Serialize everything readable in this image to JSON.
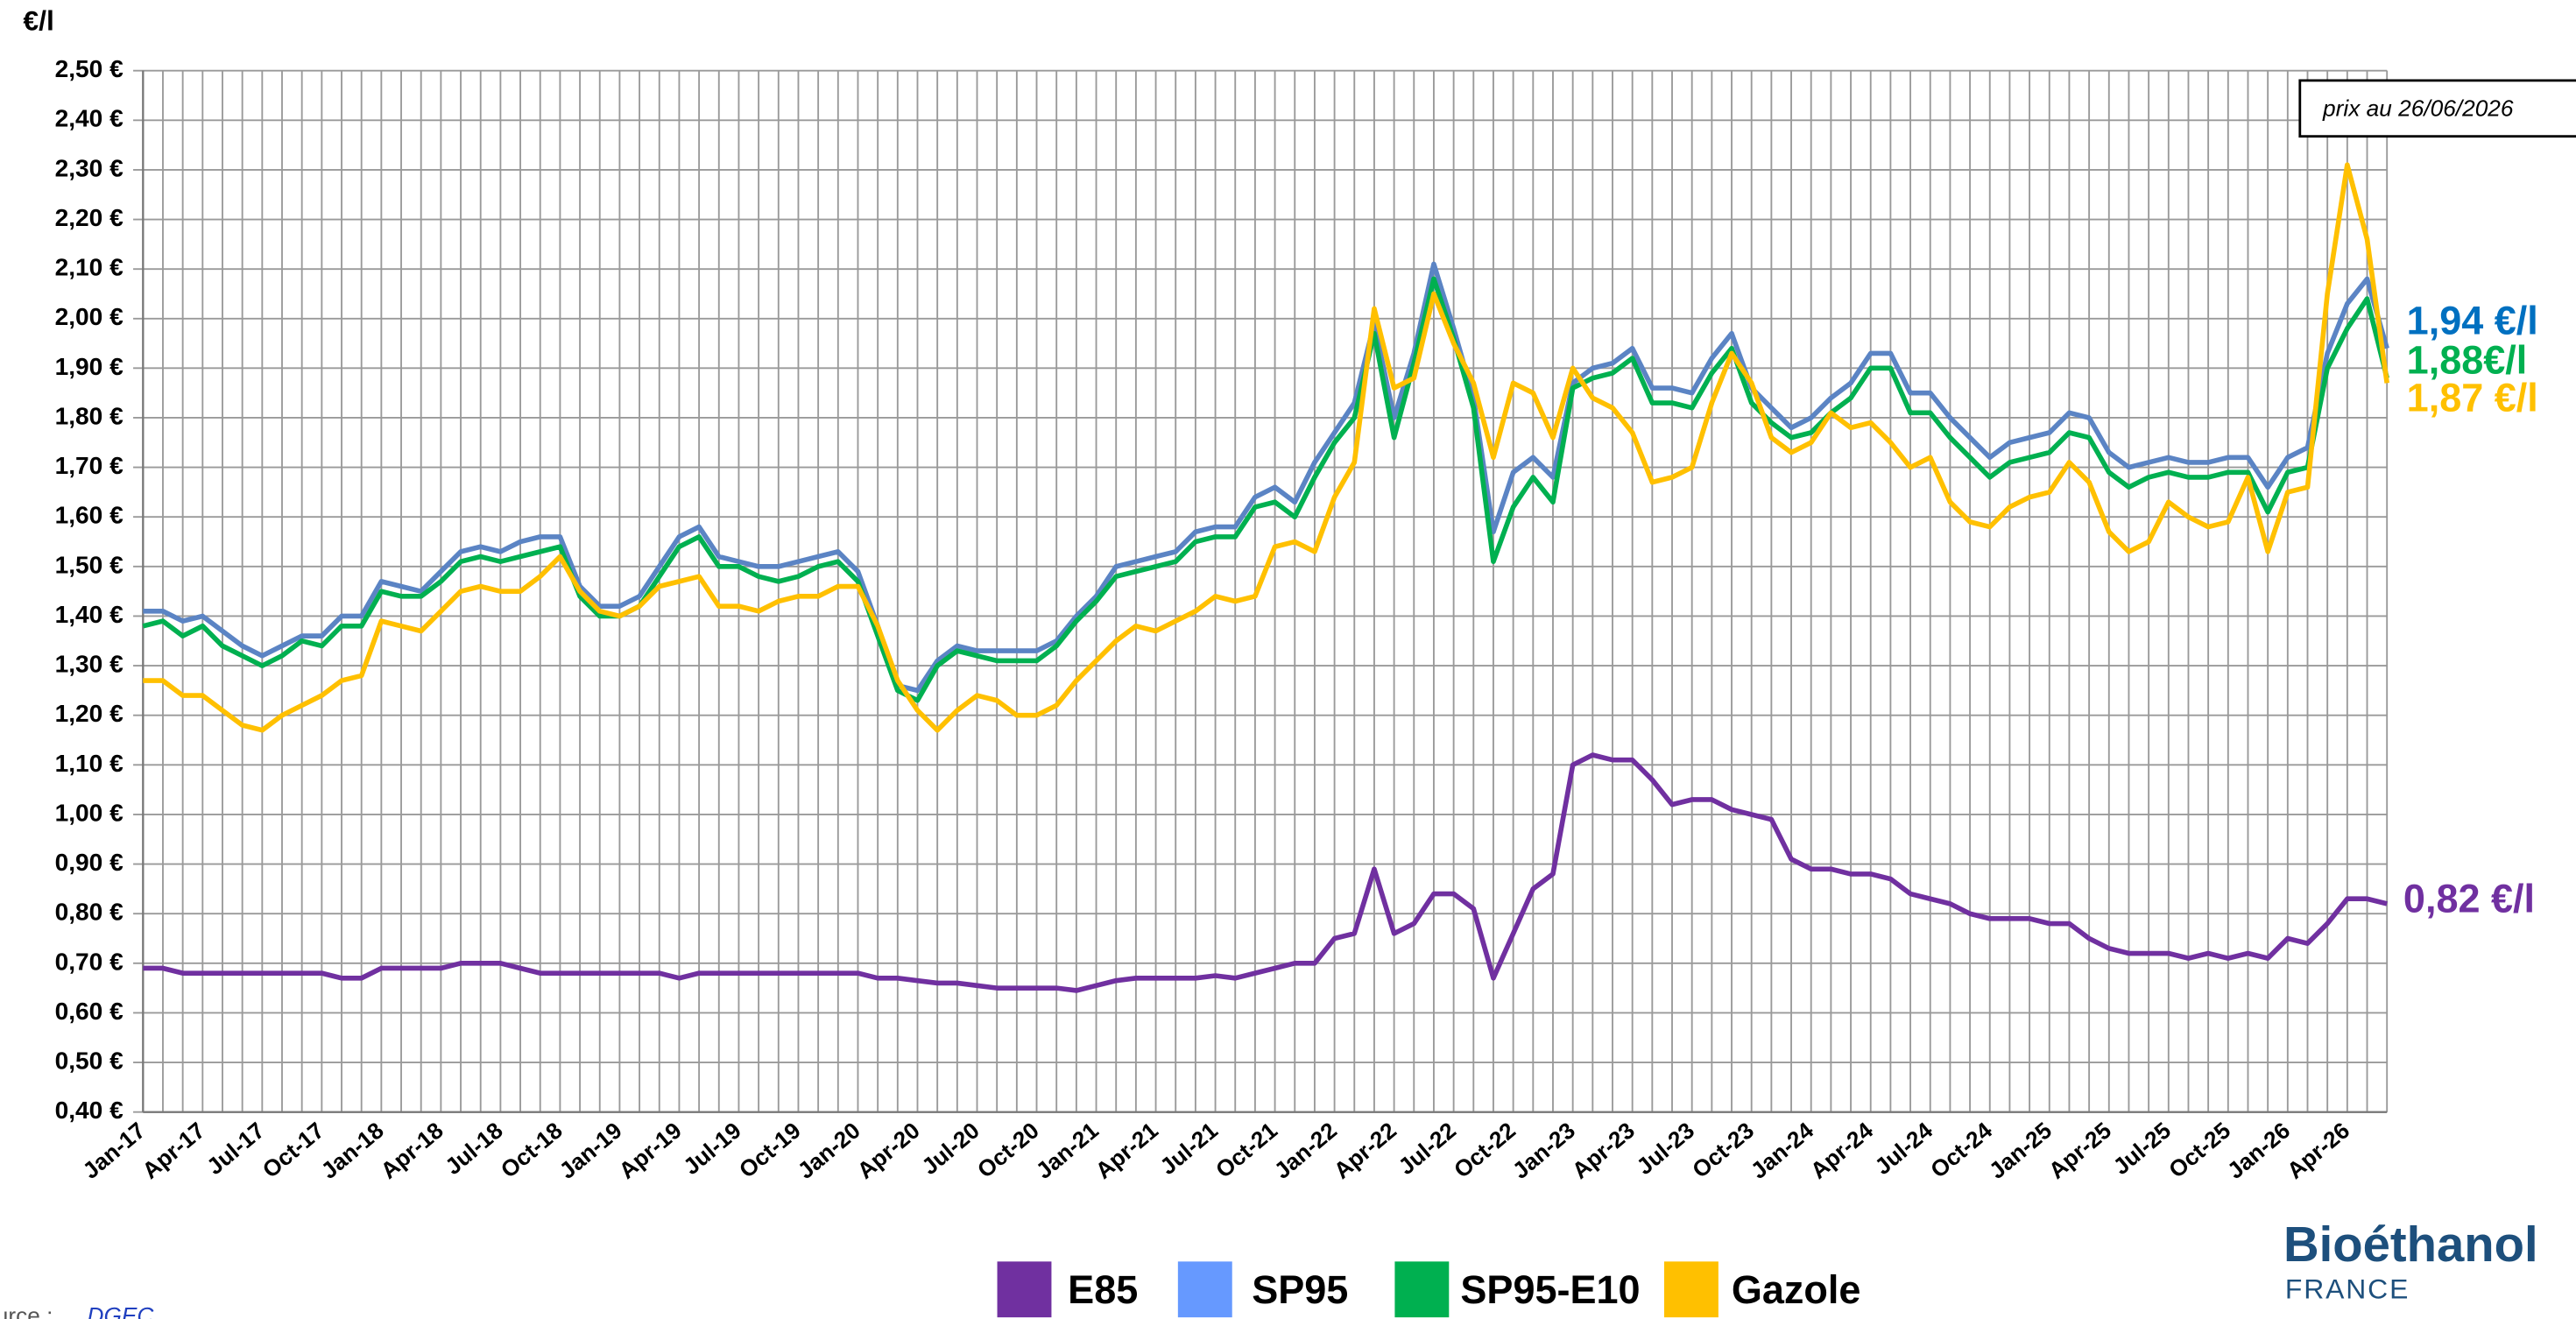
{
  "chart_data": {
    "type": "line",
    "y_label": "€/l",
    "categories": [
      "Jan-17",
      null,
      null,
      "Apr-17",
      null,
      null,
      "Jul-17",
      null,
      null,
      "Oct-17",
      null,
      null,
      "Jan-18",
      null,
      null,
      "Apr-18",
      null,
      null,
      "Jul-18",
      null,
      null,
      "Oct-18",
      null,
      null,
      "Jan-19",
      null,
      null,
      "Apr-19",
      null,
      null,
      "Jul-19",
      null,
      null,
      "Oct-19",
      null,
      null,
      "Jan-20",
      null,
      null,
      "Apr-20",
      null,
      null,
      "Jul-20",
      null,
      null,
      "Oct-20",
      null,
      null,
      "Jan-21",
      null,
      null,
      "Apr-21",
      null,
      null,
      "Jul-21",
      null,
      null,
      "Oct-21",
      null,
      null,
      "Jan-22",
      null,
      null,
      "Apr-22",
      null,
      null,
      "Jul-22",
      null,
      null,
      "Oct-22",
      null,
      null,
      "Jan-23",
      null,
      null,
      "Apr-23",
      null,
      null,
      "Jul-23",
      null,
      null,
      "Oct-23",
      null,
      null,
      "Jan-24",
      null,
      null,
      "Apr-24",
      null,
      null,
      "Jul-24",
      null,
      null,
      "Oct-24",
      null,
      null,
      "Jan-25",
      null,
      null,
      "Apr-25",
      null,
      null,
      "Jul-25",
      null,
      null,
      "Oct-25",
      null,
      null,
      "Jan-26",
      null,
      null,
      "Apr-26",
      null,
      null
    ],
    "series": [
      {
        "name": "E85",
        "color": "#7030a0",
        "legend_color": "#7030a0",
        "values": [
          0.69,
          0.69,
          0.68,
          0.68,
          0.68,
          0.68,
          0.68,
          0.68,
          0.68,
          0.68,
          0.67,
          0.67,
          0.69,
          0.69,
          0.69,
          0.69,
          0.7,
          0.7,
          0.7,
          0.69,
          0.68,
          0.68,
          0.68,
          0.68,
          0.68,
          0.68,
          0.68,
          0.67,
          0.68,
          0.68,
          0.68,
          0.68,
          0.68,
          0.68,
          0.68,
          0.68,
          0.68,
          0.67,
          0.67,
          0.665,
          0.66,
          0.66,
          0.655,
          0.65,
          0.65,
          0.65,
          0.65,
          0.645,
          0.655,
          0.665,
          0.67,
          0.67,
          0.67,
          0.67,
          0.675,
          0.67,
          0.68,
          0.69,
          0.7,
          0.7,
          0.75,
          0.76,
          0.89,
          0.76,
          0.78,
          0.84,
          0.84,
          0.81,
          0.67,
          0.76,
          0.85,
          0.88,
          1.1,
          1.12,
          1.11,
          1.11,
          1.07,
          1.02,
          1.03,
          1.03,
          1.01,
          1.0,
          0.99,
          0.91,
          0.89,
          0.89,
          0.88,
          0.88,
          0.87,
          0.84,
          0.83,
          0.82,
          0.8,
          0.79,
          0.79,
          0.79,
          0.78,
          0.78,
          0.75,
          0.73,
          0.72,
          0.72,
          0.72,
          0.71,
          0.72,
          0.71,
          0.72,
          0.71,
          0.75,
          0.74,
          0.78,
          0.83,
          0.83,
          0.82
        ]
      },
      {
        "name": "SP95",
        "color": "#5b84c4",
        "legend_color": "#6699ff",
        "values": [
          1.41,
          1.41,
          1.39,
          1.4,
          1.37,
          1.34,
          1.32,
          1.34,
          1.36,
          1.36,
          1.4,
          1.4,
          1.47,
          1.46,
          1.45,
          1.49,
          1.53,
          1.54,
          1.53,
          1.55,
          1.56,
          1.56,
          1.46,
          1.42,
          1.42,
          1.44,
          1.5,
          1.56,
          1.58,
          1.52,
          1.51,
          1.5,
          1.5,
          1.51,
          1.52,
          1.53,
          1.49,
          1.38,
          1.26,
          1.25,
          1.31,
          1.34,
          1.33,
          1.33,
          1.33,
          1.33,
          1.35,
          1.4,
          1.44,
          1.5,
          1.51,
          1.52,
          1.53,
          1.57,
          1.58,
          1.58,
          1.64,
          1.66,
          1.63,
          1.71,
          1.77,
          1.83,
          1.99,
          1.8,
          1.93,
          2.11,
          1.98,
          1.84,
          1.57,
          1.69,
          1.72,
          1.68,
          1.87,
          1.9,
          1.91,
          1.94,
          1.86,
          1.86,
          1.85,
          1.92,
          1.97,
          1.86,
          1.82,
          1.78,
          1.8,
          1.84,
          1.87,
          1.93,
          1.93,
          1.85,
          1.85,
          1.8,
          1.76,
          1.72,
          1.75,
          1.76,
          1.77,
          1.81,
          1.8,
          1.73,
          1.7,
          1.71,
          1.72,
          1.71,
          1.71,
          1.72,
          1.72,
          1.66,
          1.72,
          1.74,
          1.93,
          2.03,
          2.08,
          1.94
        ]
      },
      {
        "name": "SP95-E10",
        "color": "#00b050",
        "legend_color": "#00b050",
        "values": [
          1.38,
          1.39,
          1.36,
          1.38,
          1.34,
          1.32,
          1.3,
          1.32,
          1.35,
          1.34,
          1.38,
          1.38,
          1.45,
          1.44,
          1.44,
          1.47,
          1.51,
          1.52,
          1.51,
          1.52,
          1.53,
          1.54,
          1.44,
          1.4,
          1.4,
          1.42,
          1.48,
          1.54,
          1.56,
          1.5,
          1.5,
          1.48,
          1.47,
          1.48,
          1.5,
          1.51,
          1.47,
          1.36,
          1.25,
          1.23,
          1.3,
          1.33,
          1.32,
          1.31,
          1.31,
          1.31,
          1.34,
          1.39,
          1.43,
          1.48,
          1.49,
          1.5,
          1.51,
          1.55,
          1.56,
          1.56,
          1.62,
          1.63,
          1.6,
          1.68,
          1.75,
          1.8,
          1.97,
          1.76,
          1.91,
          2.08,
          1.96,
          1.82,
          1.51,
          1.62,
          1.68,
          1.63,
          1.86,
          1.88,
          1.89,
          1.92,
          1.83,
          1.83,
          1.82,
          1.89,
          1.94,
          1.83,
          1.79,
          1.76,
          1.77,
          1.81,
          1.84,
          1.9,
          1.9,
          1.81,
          1.81,
          1.76,
          1.72,
          1.68,
          1.71,
          1.72,
          1.73,
          1.77,
          1.76,
          1.69,
          1.66,
          1.68,
          1.69,
          1.68,
          1.68,
          1.69,
          1.69,
          1.61,
          1.69,
          1.7,
          1.9,
          1.98,
          2.04,
          1.88
        ]
      },
      {
        "name": "Gazole",
        "color": "#ffc000",
        "legend_color": "#ffc000",
        "values": [
          1.27,
          1.27,
          1.24,
          1.24,
          1.21,
          1.18,
          1.17,
          1.2,
          1.22,
          1.24,
          1.27,
          1.28,
          1.39,
          1.38,
          1.37,
          1.41,
          1.45,
          1.46,
          1.45,
          1.45,
          1.48,
          1.52,
          1.45,
          1.41,
          1.4,
          1.42,
          1.46,
          1.47,
          1.48,
          1.42,
          1.42,
          1.41,
          1.43,
          1.44,
          1.44,
          1.46,
          1.46,
          1.38,
          1.27,
          1.21,
          1.17,
          1.21,
          1.24,
          1.23,
          1.2,
          1.2,
          1.22,
          1.27,
          1.31,
          1.35,
          1.38,
          1.37,
          1.39,
          1.41,
          1.44,
          1.43,
          1.44,
          1.54,
          1.55,
          1.53,
          1.64,
          1.71,
          2.02,
          1.86,
          1.88,
          2.05,
          1.95,
          1.87,
          1.72,
          1.87,
          1.85,
          1.76,
          1.9,
          1.84,
          1.82,
          1.77,
          1.67,
          1.68,
          1.7,
          1.83,
          1.93,
          1.87,
          1.76,
          1.73,
          1.75,
          1.81,
          1.78,
          1.79,
          1.75,
          1.7,
          1.72,
          1.63,
          1.59,
          1.58,
          1.62,
          1.64,
          1.65,
          1.71,
          1.67,
          1.57,
          1.53,
          1.55,
          1.63,
          1.6,
          1.58,
          1.59,
          1.68,
          1.53,
          1.65,
          1.66,
          2.05,
          2.31,
          2.16,
          1.87
        ]
      }
    ],
    "ylim": [
      0.4,
      2.5
    ],
    "yticks": [
      {
        "value": 0.4,
        "label": "0,40 €"
      },
      {
        "value": 0.5,
        "label": "0,50 €"
      },
      {
        "value": 0.6,
        "label": "0,60 €"
      },
      {
        "value": 0.7,
        "label": "0,70 €"
      },
      {
        "value": 0.8,
        "label": "0,80 €"
      },
      {
        "value": 0.9,
        "label": "0,90 €"
      },
      {
        "value": 1.0,
        "label": "1,00 €"
      },
      {
        "value": 1.1,
        "label": "1,10 €"
      },
      {
        "value": 1.2,
        "label": "1,20 €"
      },
      {
        "value": 1.3,
        "label": "1,30 €"
      },
      {
        "value": 1.4,
        "label": "1,40 €"
      },
      {
        "value": 1.5,
        "label": "1,50 €"
      },
      {
        "value": 1.6,
        "label": "1,60 €"
      },
      {
        "value": 1.7,
        "label": "1,70 €"
      },
      {
        "value": 1.8,
        "label": "1,80 €"
      },
      {
        "value": 1.9,
        "label": "1,90 €"
      },
      {
        "value": 2.0,
        "label": "2,00 €"
      },
      {
        "value": 2.1,
        "label": "2,10 €"
      },
      {
        "value": 2.2,
        "label": "2,20 €"
      },
      {
        "value": 2.3,
        "label": "2,30 €"
      },
      {
        "value": 2.4,
        "label": "2,40 €"
      },
      {
        "value": 2.5,
        "label": "2,50 €"
      }
    ],
    "grid": true,
    "legend": "bottom",
    "annotations": [
      {
        "text": "1,94 €/l",
        "color": "#0070c0"
      },
      {
        "text": "1,88€/l",
        "color": "#00b050"
      },
      {
        "text": "1,87 €/l",
        "color": "#ffc000"
      },
      {
        "text": "0,82 €/l",
        "color": "#7030a0"
      }
    ],
    "date_note": "prix au 26/06/2026",
    "source_label": "Source :",
    "source_name": "DGEC",
    "logo": {
      "name": "Bioéthanol",
      "sub": "FRANCE"
    }
  }
}
